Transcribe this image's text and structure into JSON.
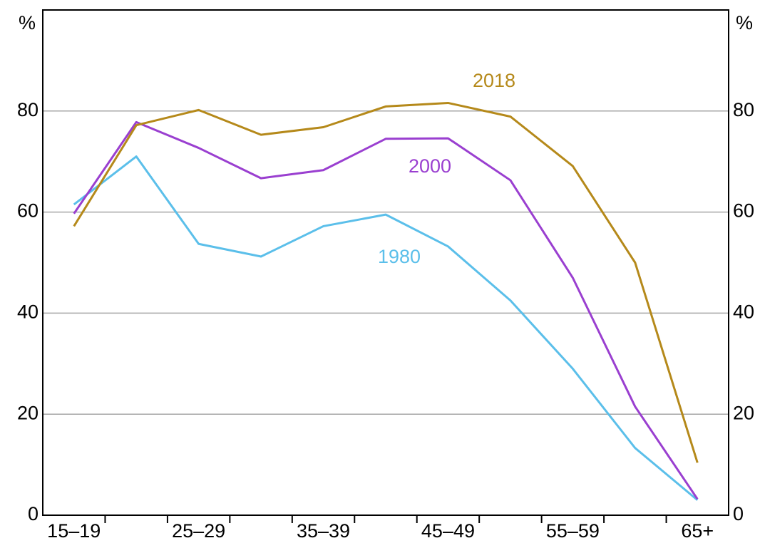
{
  "chart_data": {
    "type": "line",
    "ylabel": "%",
    "y2label": "%",
    "categories": [
      "15–19",
      null,
      "25–29",
      null,
      "35–39",
      null,
      "45–49",
      null,
      "55–59",
      null,
      "65+"
    ],
    "series": [
      {
        "name": "1980",
        "color": "#5bbfea",
        "values": [
          61.5,
          71,
          53.7,
          51.2,
          57.2,
          59.5,
          53.2,
          42.5,
          29,
          13.3,
          3
        ]
      },
      {
        "name": "2000",
        "color": "#9a3fd0",
        "values": [
          59.7,
          77.8,
          72.7,
          66.7,
          68.3,
          74.5,
          74.6,
          66.3,
          47,
          21.5,
          3.2
        ]
      },
      {
        "name": "2018",
        "color": "#b5891a",
        "values": [
          57.2,
          77.2,
          80.2,
          75.3,
          76.8,
          80.9,
          81.6,
          78.9,
          69.1,
          50,
          10.4
        ]
      }
    ],
    "ylim": [
      0,
      100
    ],
    "yticks": [
      0,
      20,
      40,
      60,
      80
    ],
    "y2lim": [
      0,
      100
    ],
    "y2ticks": [
      0,
      20,
      40,
      60,
      80
    ],
    "grid": true
  }
}
